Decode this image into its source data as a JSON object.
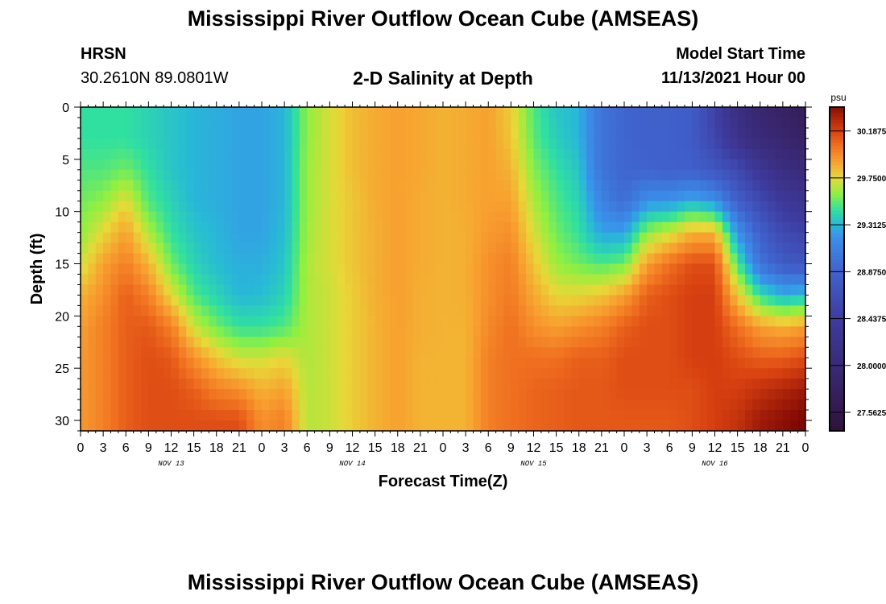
{
  "header": {
    "title": "Mississippi River Outflow Ocean Cube (AMSEAS)",
    "station": "HRSN",
    "coords": "30.2610N  89.0801W",
    "subtitle": "2-D Salinity at Depth",
    "model_label": "Model Start Time",
    "model_time": "11/13/2021 Hour 00",
    "repeat_title": "Mississippi River Outflow Ocean Cube (AMSEAS)"
  },
  "chart_data": {
    "type": "heatmap",
    "title": "2-D Salinity at Depth",
    "xlabel": "Forecast Time(Z)",
    "ylabel": "Depth (ft)",
    "x_hours": [
      0,
      3,
      6,
      9,
      12,
      15,
      18,
      21,
      24,
      27,
      30,
      33,
      36,
      39,
      42,
      45,
      48,
      51,
      54,
      57,
      60,
      63,
      66,
      69,
      72,
      75,
      78,
      81,
      84,
      87,
      90,
      93,
      96
    ],
    "x_tick_labels": [
      "0",
      "3",
      "6",
      "9",
      "12",
      "15",
      "18",
      "21",
      "0",
      "3",
      "6",
      "9",
      "12",
      "15",
      "18",
      "21",
      "0",
      "3",
      "6",
      "9",
      "12",
      "15",
      "18",
      "21",
      "0",
      "3",
      "6",
      "9",
      "12",
      "15",
      "18",
      "21",
      "0"
    ],
    "date_labels": [
      {
        "label": "NOV 13",
        "hour": 12
      },
      {
        "label": "NOV 14",
        "hour": 36
      },
      {
        "label": "NOV 15",
        "hour": 60
      },
      {
        "label": "NOV 16",
        "hour": 84
      }
    ],
    "depths": [
      0,
      3,
      6,
      9,
      12,
      15,
      18,
      21,
      24,
      27,
      30
    ],
    "ylim": [
      31,
      0
    ],
    "y_ticks": [
      "0",
      "5",
      "10",
      "15",
      "20",
      "25",
      "30"
    ],
    "colorbar": {
      "unit": "psu",
      "range": [
        27.39,
        30.41
      ],
      "ticks": [
        "30.1875",
        "29.7500",
        "29.3125",
        "28.8750",
        "28.4375",
        "28.0000",
        "27.5625"
      ]
    },
    "values": [
      [
        29.45,
        29.45,
        29.5,
        29.55,
        29.6,
        29.7,
        29.85,
        29.9,
        29.92,
        29.92,
        29.92
      ],
      [
        29.45,
        29.45,
        29.5,
        29.6,
        29.75,
        29.9,
        29.95,
        30.0,
        30.0,
        30.0,
        30.0
      ],
      [
        29.45,
        29.45,
        29.55,
        29.75,
        29.9,
        30.0,
        30.1,
        30.1,
        30.1,
        30.1,
        30.1
      ],
      [
        29.4,
        29.4,
        29.45,
        29.5,
        29.65,
        29.85,
        30.0,
        30.12,
        30.15,
        30.15,
        30.15
      ],
      [
        29.35,
        29.35,
        29.35,
        29.4,
        29.45,
        29.55,
        29.75,
        30.0,
        30.12,
        30.15,
        30.15
      ],
      [
        29.3,
        29.3,
        29.3,
        29.3,
        29.35,
        29.4,
        29.5,
        29.7,
        29.95,
        30.1,
        30.15
      ],
      [
        29.28,
        29.28,
        29.28,
        29.28,
        29.3,
        29.32,
        29.4,
        29.55,
        29.8,
        30.0,
        30.15
      ],
      [
        29.25,
        29.25,
        29.25,
        29.25,
        29.25,
        29.28,
        29.3,
        29.45,
        29.7,
        29.95,
        30.15
      ],
      [
        29.25,
        29.25,
        29.25,
        29.25,
        29.25,
        29.28,
        29.32,
        29.45,
        29.7,
        29.85,
        29.95
      ],
      [
        29.3,
        29.3,
        29.3,
        29.3,
        29.32,
        29.35,
        29.4,
        29.5,
        29.75,
        29.9,
        30.0
      ],
      [
        29.6,
        29.6,
        29.62,
        29.62,
        29.63,
        29.65,
        29.65,
        29.65,
        29.65,
        29.66,
        29.66
      ],
      [
        29.72,
        29.72,
        29.72,
        29.72,
        29.72,
        29.72,
        29.7,
        29.7,
        29.7,
        29.7,
        29.7
      ],
      [
        29.82,
        29.82,
        29.82,
        29.8,
        29.8,
        29.8,
        29.78,
        29.78,
        29.78,
        29.78,
        29.78
      ],
      [
        29.87,
        29.87,
        29.87,
        29.87,
        29.86,
        29.86,
        29.86,
        29.85,
        29.85,
        29.85,
        29.85
      ],
      [
        29.9,
        29.9,
        29.9,
        29.9,
        29.9,
        29.9,
        29.9,
        29.9,
        29.9,
        29.9,
        29.9
      ],
      [
        29.88,
        29.88,
        29.88,
        29.87,
        29.87,
        29.87,
        29.86,
        29.86,
        29.85,
        29.85,
        29.85
      ],
      [
        29.85,
        29.85,
        29.85,
        29.85,
        29.85,
        29.85,
        29.85,
        29.85,
        29.85,
        29.85,
        29.85
      ],
      [
        29.87,
        29.87,
        29.87,
        29.87,
        29.86,
        29.86,
        29.86,
        29.85,
        29.85,
        29.85,
        29.85
      ],
      [
        29.9,
        29.9,
        29.9,
        29.9,
        29.92,
        29.95,
        29.95,
        29.97,
        30.0,
        30.0,
        30.0
      ],
      [
        29.78,
        29.8,
        29.85,
        29.9,
        29.95,
        30.0,
        30.02,
        30.05,
        30.05,
        30.05,
        30.05
      ],
      [
        29.5,
        29.52,
        29.58,
        29.65,
        29.72,
        29.8,
        29.88,
        29.95,
        30.05,
        30.08,
        30.08
      ],
      [
        29.35,
        29.38,
        29.45,
        29.5,
        29.55,
        29.62,
        29.75,
        29.9,
        30.05,
        30.1,
        30.1
      ],
      [
        29.3,
        29.3,
        29.35,
        29.4,
        29.45,
        29.55,
        29.75,
        29.95,
        30.1,
        30.12,
        30.12
      ],
      [
        29.0,
        29.0,
        29.0,
        29.1,
        29.25,
        29.5,
        29.8,
        30.0,
        30.1,
        30.12,
        30.12
      ],
      [
        28.9,
        28.9,
        28.9,
        28.95,
        29.25,
        29.55,
        29.9,
        30.1,
        30.15,
        30.15,
        30.12
      ],
      [
        28.85,
        28.85,
        28.88,
        29.2,
        29.6,
        29.9,
        30.1,
        30.15,
        30.15,
        30.15,
        30.12
      ],
      [
        28.85,
        28.85,
        28.85,
        29.2,
        29.7,
        30.05,
        30.15,
        30.15,
        30.15,
        30.15,
        30.12
      ],
      [
        28.8,
        28.8,
        28.85,
        29.3,
        29.85,
        30.15,
        30.2,
        30.2,
        30.2,
        30.15,
        30.15
      ],
      [
        28.5,
        28.55,
        28.75,
        29.2,
        29.85,
        30.15,
        30.2,
        30.2,
        30.2,
        30.2,
        30.2
      ],
      [
        28.1,
        28.2,
        28.6,
        28.85,
        29.2,
        29.5,
        29.8,
        30.05,
        30.15,
        30.2,
        30.25
      ],
      [
        27.9,
        28.0,
        28.3,
        28.6,
        28.85,
        29.0,
        29.45,
        29.9,
        30.1,
        30.25,
        30.35
      ],
      [
        27.8,
        27.9,
        28.1,
        28.35,
        28.6,
        28.8,
        29.3,
        29.85,
        30.1,
        30.3,
        30.4
      ],
      [
        27.7,
        27.8,
        28.0,
        28.25,
        28.5,
        28.75,
        29.35,
        29.9,
        30.15,
        30.35,
        30.45
      ]
    ]
  }
}
